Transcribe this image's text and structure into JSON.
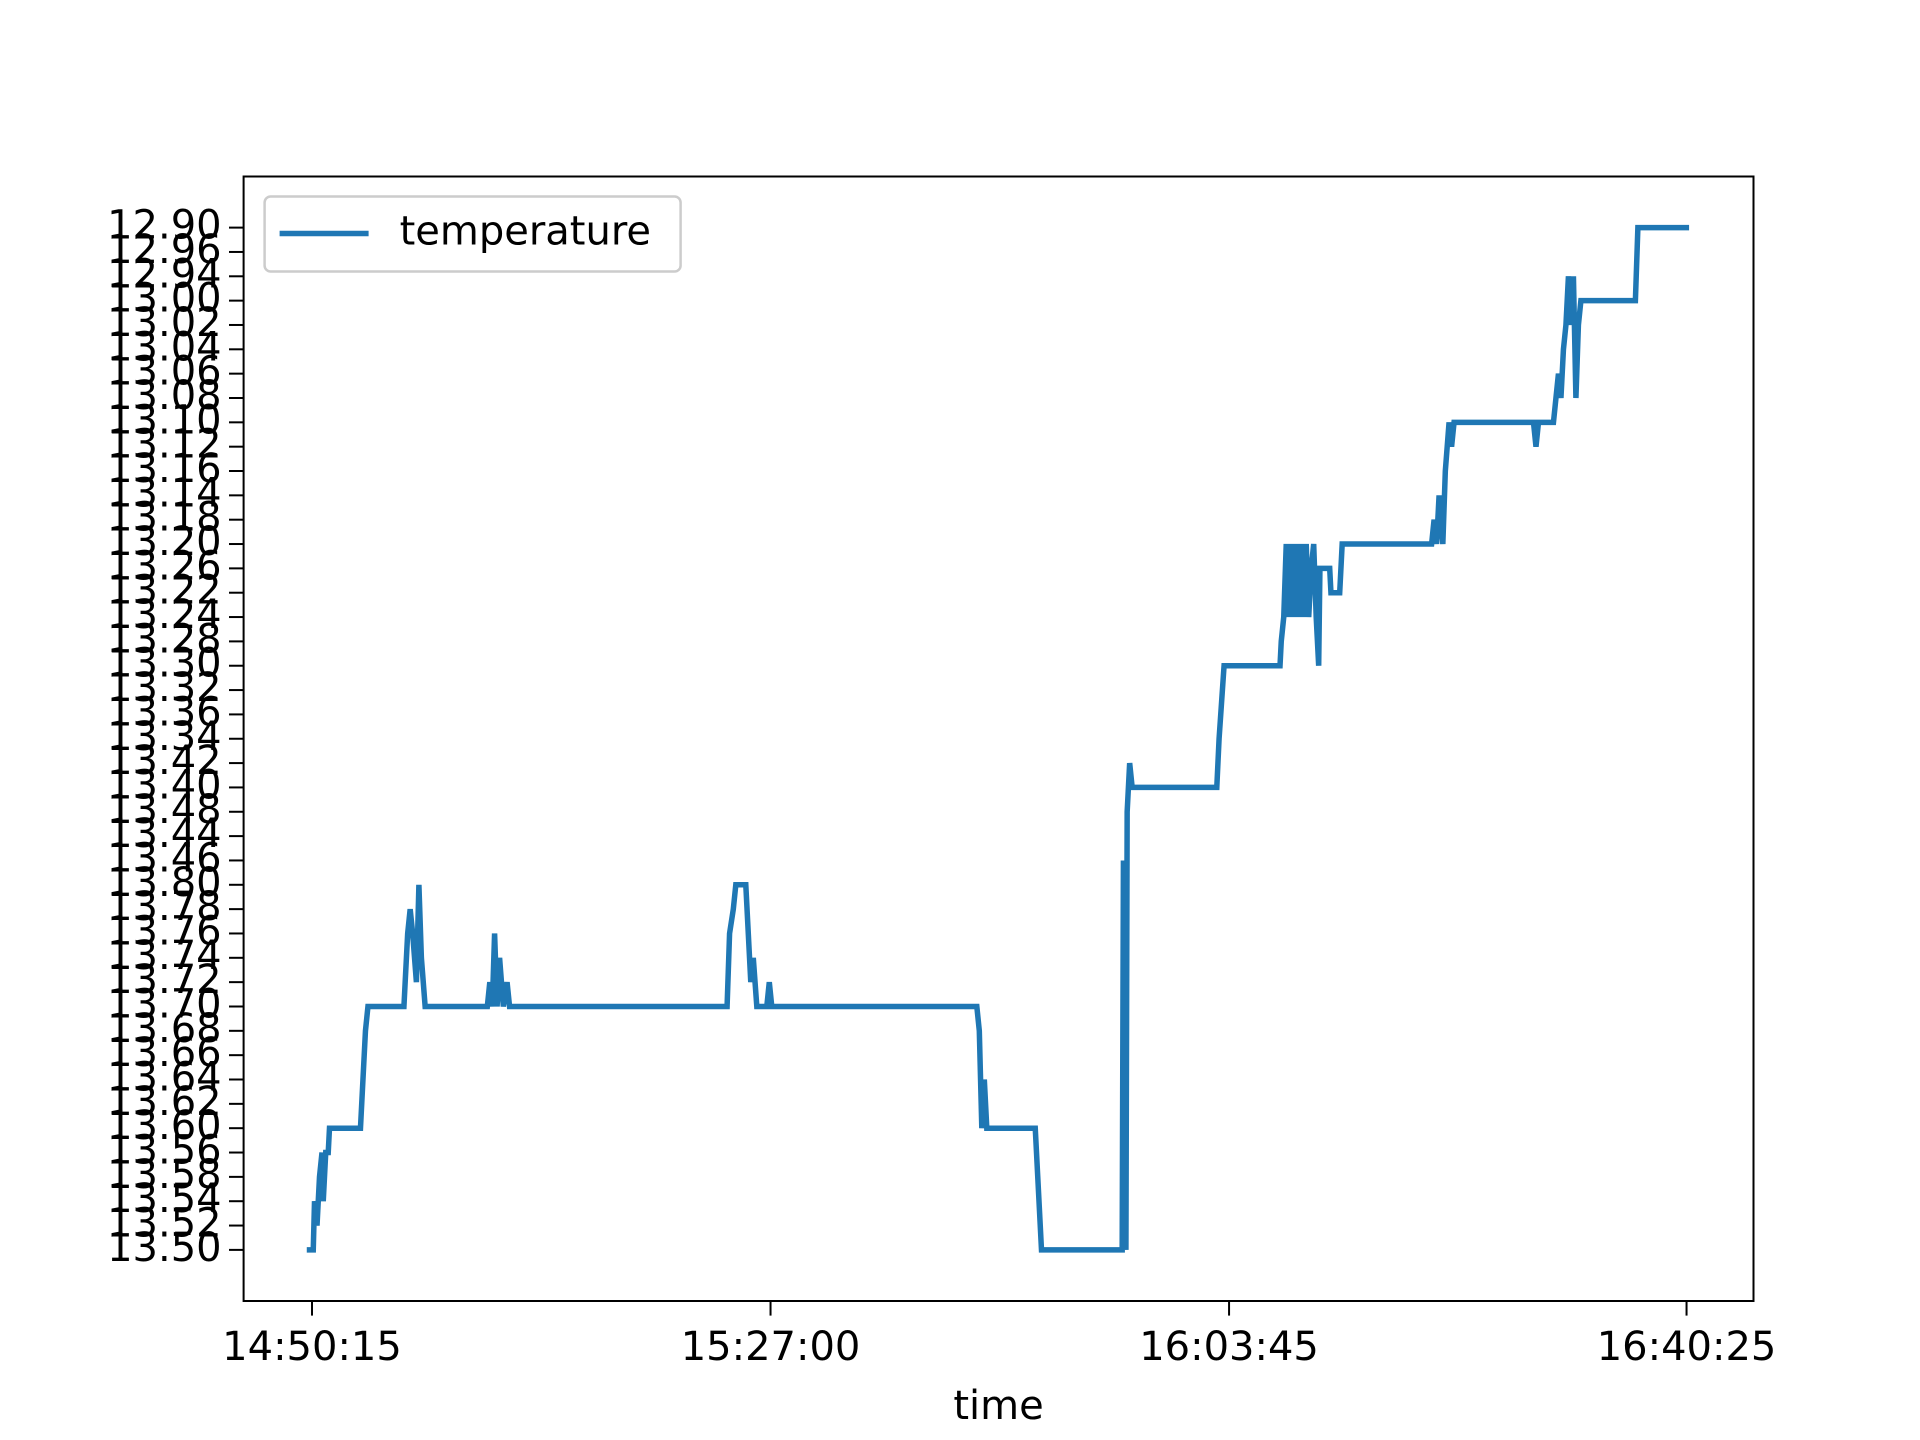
{
  "chart_data": {
    "type": "line",
    "x_label": "time",
    "x": [
      53403,
      53421,
      53427,
      53439,
      53451,
      53463,
      53469,
      53481,
      53493,
      53499,
      53648,
      53654,
      53666,
      53672,
      53684,
      53857,
      53863,
      53875,
      53887,
      53899,
      53917,
      53929,
      53941,
      53959,
      54258,
      54270,
      54282,
      54293,
      54305,
      54317,
      54335,
      54353,
      54365,
      55411,
      55423,
      55441,
      55453,
      55501,
      55513,
      55525,
      55537,
      55554,
      55602,
      55614,
      55626,
      56612,
      56624,
      56636,
      56648,
      56660,
      56893,
      56905,
      56911,
      56923,
      57311,
      57317,
      57323,
      57329,
      57335,
      57347,
      57359,
      57766,
      57777,
      57801,
      58070,
      58076,
      58088,
      58100,
      58112,
      58124,
      58136,
      58148,
      58160,
      58172,
      58184,
      58196,
      58208,
      58220,
      58232,
      58244,
      58256,
      58262,
      58309,
      58315,
      58357,
      58369,
      58799,
      58811,
      58823,
      58835,
      58853,
      58865,
      58883,
      58895,
      58907,
      59289,
      59301,
      59313,
      59385,
      59397,
      59409,
      59421,
      59433,
      59445,
      59457,
      59469,
      59481,
      59493,
      59505,
      59517,
      59529,
      59779,
      59791,
      60024
    ],
    "series": [
      {
        "name": "temperature",
        "color": "#1f77b4",
        "values": [
          0,
          0,
          2,
          1,
          3,
          4,
          2,
          4,
          4,
          5,
          5,
          6,
          8,
          9,
          10,
          10,
          11,
          13,
          14,
          13,
          11,
          15,
          12,
          10,
          10,
          11,
          10,
          13,
          10,
          12,
          10,
          11,
          10,
          10,
          13,
          14,
          15,
          15,
          13,
          11,
          12,
          10,
          10,
          11,
          10,
          10,
          9,
          5,
          7,
          5,
          5,
          3,
          2,
          0,
          0,
          16,
          1,
          0,
          18,
          20,
          19,
          19,
          21,
          24,
          24,
          25,
          26,
          29,
          26,
          29,
          26,
          29,
          26,
          29,
          26,
          29,
          26,
          28,
          29,
          26,
          24,
          28,
          28,
          27,
          27,
          29,
          29,
          30,
          29,
          31,
          29,
          32,
          34,
          33,
          34,
          34,
          33,
          34,
          34,
          35,
          36,
          35,
          37,
          38,
          40,
          38,
          40,
          35,
          38,
          39,
          39,
          39,
          42,
          42
        ]
      }
    ],
    "xlim": [
      53086,
      60347
    ],
    "xticks": [
      {
        "value": 53415,
        "label": "14:50:15"
      },
      {
        "value": 55620,
        "label": "15:27:00"
      },
      {
        "value": 57825,
        "label": "16:03:45"
      },
      {
        "value": 60025,
        "label": "16:40:25"
      }
    ],
    "ylim": [
      -2.1,
      44.1
    ],
    "yticks": [
      {
        "value": 0,
        "label": "13.50"
      },
      {
        "value": 1,
        "label": "13.52"
      },
      {
        "value": 2,
        "label": "13.54"
      },
      {
        "value": 3,
        "label": "13.58"
      },
      {
        "value": 4,
        "label": "13.56"
      },
      {
        "value": 5,
        "label": "13.60"
      },
      {
        "value": 6,
        "label": "13.62"
      },
      {
        "value": 7,
        "label": "13.64"
      },
      {
        "value": 8,
        "label": "13.66"
      },
      {
        "value": 9,
        "label": "13.68"
      },
      {
        "value": 10,
        "label": "13.70"
      },
      {
        "value": 11,
        "label": "13.72"
      },
      {
        "value": 12,
        "label": "13.74"
      },
      {
        "value": 13,
        "label": "13.76"
      },
      {
        "value": 14,
        "label": "13.78"
      },
      {
        "value": 15,
        "label": "13.80"
      },
      {
        "value": 16,
        "label": "13.46"
      },
      {
        "value": 17,
        "label": "13.44"
      },
      {
        "value": 18,
        "label": "13.48"
      },
      {
        "value": 19,
        "label": "13.40"
      },
      {
        "value": 20,
        "label": "13.42"
      },
      {
        "value": 21,
        "label": "13.34"
      },
      {
        "value": 22,
        "label": "13.36"
      },
      {
        "value": 23,
        "label": "13.32"
      },
      {
        "value": 24,
        "label": "13.30"
      },
      {
        "value": 25,
        "label": "13.28"
      },
      {
        "value": 26,
        "label": "13.24"
      },
      {
        "value": 27,
        "label": "13.22"
      },
      {
        "value": 28,
        "label": "13.26"
      },
      {
        "value": 29,
        "label": "13.20"
      },
      {
        "value": 30,
        "label": "13.18"
      },
      {
        "value": 31,
        "label": "13.14"
      },
      {
        "value": 32,
        "label": "13.16"
      },
      {
        "value": 33,
        "label": "13.12"
      },
      {
        "value": 34,
        "label": "13.10"
      },
      {
        "value": 35,
        "label": "13.08"
      },
      {
        "value": 36,
        "label": "13.06"
      },
      {
        "value": 37,
        "label": "13.04"
      },
      {
        "value": 38,
        "label": "13.02"
      },
      {
        "value": 39,
        "label": "13.00"
      },
      {
        "value": 40,
        "label": "12.94"
      },
      {
        "value": 41,
        "label": "12.96"
      },
      {
        "value": 42,
        "label": "12.90"
      }
    ],
    "grid": false,
    "legend": "upper left"
  }
}
